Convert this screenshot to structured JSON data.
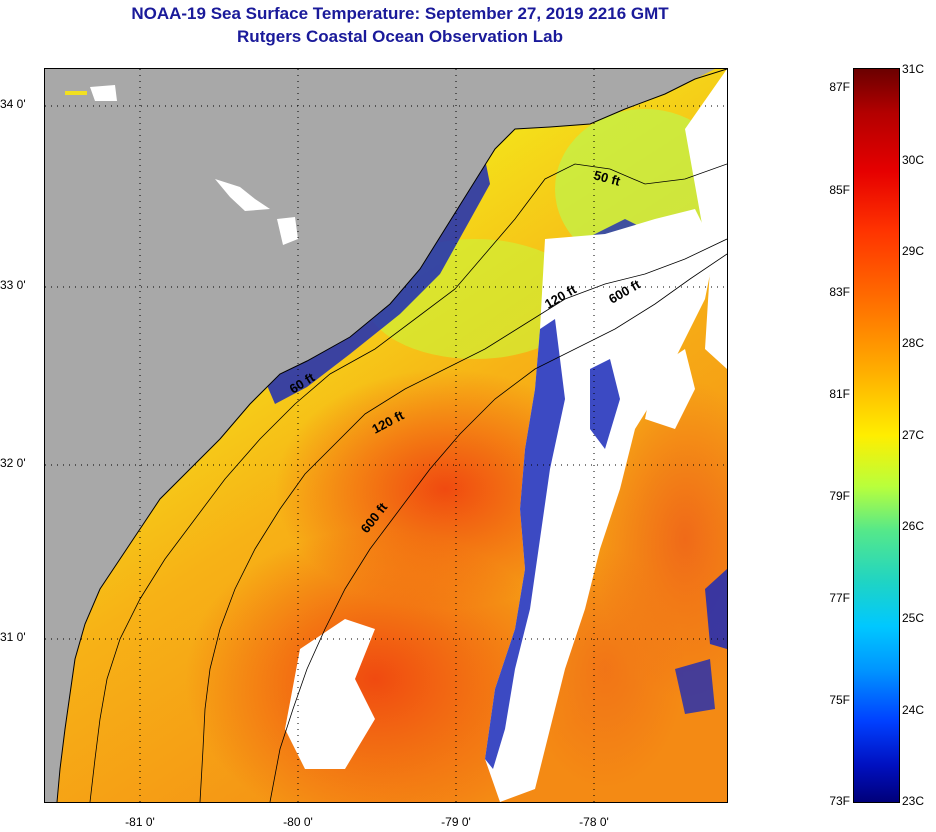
{
  "title": {
    "line1": "NOAA-19 Sea Surface Temperature:  September 27, 2019 2216 GMT",
    "line2": "Rutgers Coastal Ocean Observation Lab"
  },
  "map": {
    "lat_ticks": [
      {
        "value": 34,
        "label": "34 0'"
      },
      {
        "value": 33,
        "label": "33 0'"
      },
      {
        "value": 32,
        "label": "32 0'"
      },
      {
        "value": 31,
        "label": "31 0'"
      }
    ],
    "lon_ticks": [
      {
        "value": -81,
        "label": "-81 0'"
      },
      {
        "value": -80,
        "label": "-80 0'"
      },
      {
        "value": -79,
        "label": "-79 0'"
      },
      {
        "value": -78,
        "label": "-78 0'"
      }
    ],
    "lat_range": [
      30.15,
      34.25
    ],
    "lon_range": [
      -81.5,
      -77.2
    ],
    "isobaths": [
      {
        "label": "50 ft"
      },
      {
        "label": "60 ft"
      },
      {
        "label": "120 ft"
      },
      {
        "label": "600 ft"
      },
      {
        "label": "120 ft"
      },
      {
        "label": "600 ft"
      }
    ],
    "colors": {
      "land": "#a8a8a8",
      "cloud": "#ffffff",
      "cold": "#0a1aa8",
      "warm": "#f26a10"
    }
  },
  "colorbar": {
    "range_c": [
      23,
      31
    ],
    "fahrenheit_labels": [
      "87F",
      "85F",
      "83F",
      "81F",
      "79F",
      "77F",
      "75F",
      "73F"
    ],
    "celsius_labels": [
      "31C",
      "30C",
      "29C",
      "28C",
      "27C",
      "26C",
      "25C",
      "24C",
      "23C"
    ]
  }
}
